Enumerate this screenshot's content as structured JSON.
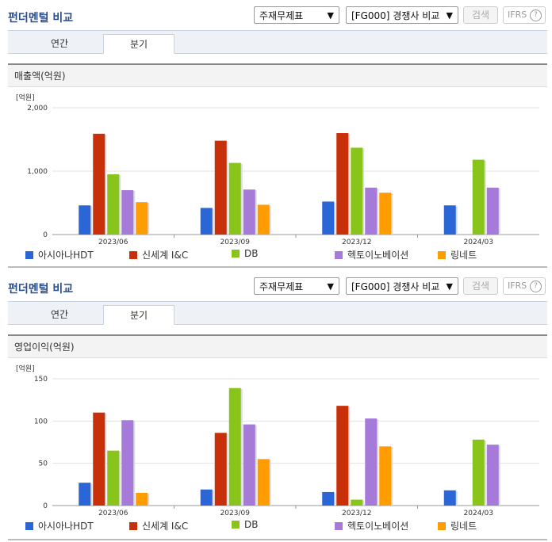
{
  "panels": [
    {
      "title": "펀더멘털 비교",
      "select1": "주재무제표",
      "select2": "[FG000] 경쟁사 비교",
      "search_label": "검색",
      "ifrs_label": "IFRS",
      "help_icon_text": "?",
      "tabs": [
        "연간",
        "분기"
      ],
      "active_tab": "분기",
      "section_title": "매출액(억원)"
    },
    {
      "title": "펀더멘털 비교",
      "select1": "주재무제표",
      "select2": "[FG000] 경쟁사 비교",
      "search_label": "검색",
      "ifrs_label": "IFRS",
      "help_icon_text": "?",
      "tabs": [
        "연간",
        "분기"
      ],
      "active_tab": "분기",
      "section_title": "영업이익(억원)"
    }
  ],
  "colors": {
    "아시아나HDT": "#2a66d6",
    "신세계 I&C": "#c8300a",
    "DB": "#88c41a",
    "헥토이노베이션": "#a57ad9",
    "링네트": "#ff9d00"
  },
  "chart_data": [
    {
      "type": "bar",
      "unit_label": "[억원]",
      "categories": [
        "2023/06",
        "2023/09",
        "2023/12",
        "2024/03"
      ],
      "ylim": [
        0,
        2000
      ],
      "yticks": [
        0,
        1000,
        2000
      ],
      "ytick_labels": [
        "0",
        "1,000",
        "2,000"
      ],
      "legend_position": "bottom",
      "series": [
        {
          "name": "아시아나HDT",
          "values": [
            460,
            420,
            520,
            460
          ]
        },
        {
          "name": "신세계 I&C",
          "values": [
            1590,
            1480,
            1600,
            null
          ]
        },
        {
          "name": "DB",
          "values": [
            950,
            1130,
            1370,
            1180
          ]
        },
        {
          "name": "헥토이노베이션",
          "values": [
            700,
            710,
            740,
            740
          ]
        },
        {
          "name": "링네트",
          "values": [
            510,
            470,
            660,
            null
          ]
        }
      ]
    },
    {
      "type": "bar",
      "unit_label": "[억원]",
      "categories": [
        "2023/06",
        "2023/09",
        "2023/12",
        "2024/03"
      ],
      "ylim": [
        0,
        150
      ],
      "yticks": [
        0,
        50,
        100,
        150
      ],
      "ytick_labels": [
        "0",
        "50",
        "100",
        "150"
      ],
      "legend_position": "bottom",
      "series": [
        {
          "name": "아시아나HDT",
          "values": [
            27,
            19,
            16,
            18
          ]
        },
        {
          "name": "신세계 I&C",
          "values": [
            110,
            86,
            118,
            null
          ]
        },
        {
          "name": "DB",
          "values": [
            65,
            139,
            7,
            78
          ]
        },
        {
          "name": "헥토이노베이션",
          "values": [
            101,
            96,
            103,
            72
          ]
        },
        {
          "name": "링네트",
          "values": [
            15,
            55,
            70,
            null
          ]
        }
      ]
    }
  ]
}
